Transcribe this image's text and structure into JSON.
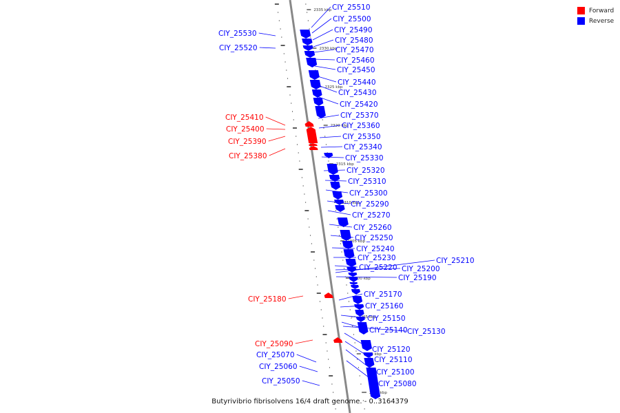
{
  "legend": [
    {
      "label": "Forward",
      "color": "#ff0000"
    },
    {
      "label": "Reverse",
      "color": "#0000ff"
    }
  ],
  "caption": "Butyrivibrio fibrisolvens 16/4 draft genome. - 0..3164379",
  "colors": {
    "forward": "#ff0000",
    "reverse": "#0000ff",
    "backbone": "#888888"
  },
  "ruler": [
    "2335 kbp",
    "2330 kbp",
    "2325 kbp",
    "2320 kbp",
    "2315 kbp",
    "2310 kbp",
    "2305 kbp",
    "2300 kbp",
    "2295 kbp",
    "2290 kbp",
    "2285 kbp"
  ],
  "genes": [
    {
      "label": "CIY_25510",
      "strand": "reverse"
    },
    {
      "label": "CIY_25500",
      "strand": "reverse"
    },
    {
      "label": "CIY_25490",
      "strand": "reverse"
    },
    {
      "label": "CIY_25480",
      "strand": "reverse"
    },
    {
      "label": "CIY_25470",
      "strand": "reverse"
    },
    {
      "label": "CIY_25460",
      "strand": "reverse"
    },
    {
      "label": "CIY_25450",
      "strand": "reverse"
    },
    {
      "label": "CIY_25440",
      "strand": "reverse"
    },
    {
      "label": "CIY_25430",
      "strand": "reverse"
    },
    {
      "label": "CIY_25420",
      "strand": "reverse"
    },
    {
      "label": "CIY_25370",
      "strand": "reverse"
    },
    {
      "label": "CIY_25360",
      "strand": "reverse"
    },
    {
      "label": "CIY_25350",
      "strand": "reverse"
    },
    {
      "label": "CIY_25340",
      "strand": "reverse"
    },
    {
      "label": "CIY_25330",
      "strand": "reverse"
    },
    {
      "label": "CIY_25320",
      "strand": "reverse"
    },
    {
      "label": "CIY_25310",
      "strand": "reverse"
    },
    {
      "label": "CIY_25300",
      "strand": "reverse"
    },
    {
      "label": "CIY_25290",
      "strand": "reverse"
    },
    {
      "label": "CIY_25270",
      "strand": "reverse"
    },
    {
      "label": "CIY_25260",
      "strand": "reverse"
    },
    {
      "label": "CIY_25250",
      "strand": "reverse"
    },
    {
      "label": "CIY_25240",
      "strand": "reverse"
    },
    {
      "label": "CIY_25230",
      "strand": "reverse"
    },
    {
      "label": "CIY_25220",
      "strand": "reverse"
    },
    {
      "label": "CIY_25200",
      "strand": "reverse"
    },
    {
      "label": "CIY_25210",
      "strand": "reverse"
    },
    {
      "label": "CIY_25190",
      "strand": "reverse"
    },
    {
      "label": "CIY_25170",
      "strand": "reverse"
    },
    {
      "label": "CIY_25160",
      "strand": "reverse"
    },
    {
      "label": "CIY_25150",
      "strand": "reverse"
    },
    {
      "label": "CIY_25140",
      "strand": "reverse"
    },
    {
      "label": "CIY_25130",
      "strand": "reverse"
    },
    {
      "label": "CIY_25120",
      "strand": "reverse"
    },
    {
      "label": "CIY_25110",
      "strand": "reverse"
    },
    {
      "label": "CIY_25100",
      "strand": "reverse"
    },
    {
      "label": "CIY_25080",
      "strand": "reverse"
    },
    {
      "label": "CIY_25530",
      "strand": "reverse"
    },
    {
      "label": "CIY_25520",
      "strand": "reverse"
    },
    {
      "label": "CIY_25410",
      "strand": "forward"
    },
    {
      "label": "CIY_25400",
      "strand": "forward"
    },
    {
      "label": "CIY_25390",
      "strand": "forward"
    },
    {
      "label": "CIY_25380",
      "strand": "forward"
    },
    {
      "label": "CIY_25180",
      "strand": "forward"
    },
    {
      "label": "CIY_25090",
      "strand": "forward"
    },
    {
      "label": "CIY_25070",
      "strand": "reverse"
    },
    {
      "label": "CIY_25060",
      "strand": "reverse"
    },
    {
      "label": "CIY_25050",
      "strand": "reverse"
    }
  ]
}
